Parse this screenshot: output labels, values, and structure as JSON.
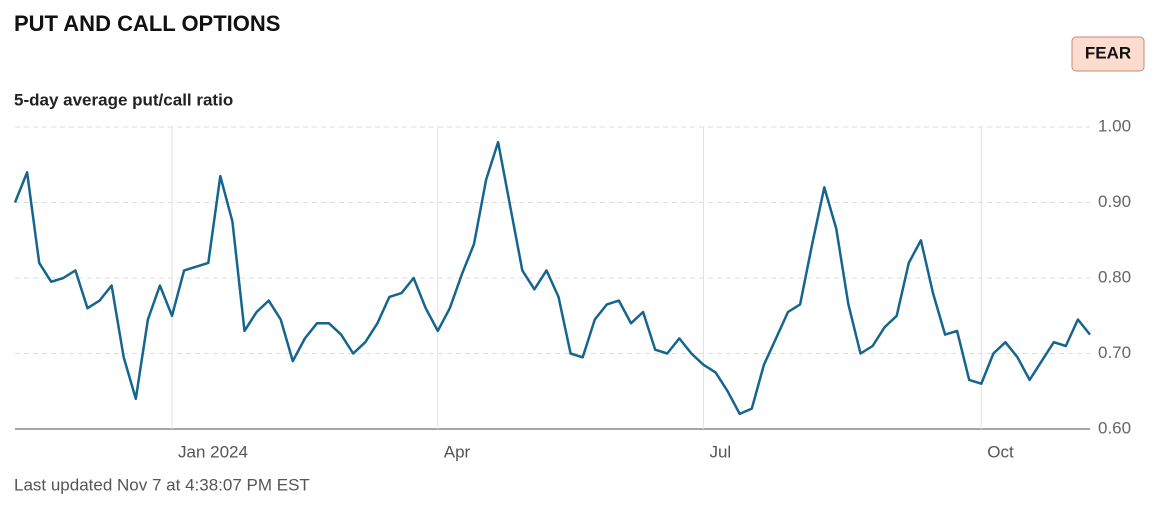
{
  "chart_data": {
    "type": "line",
    "title": "PUT AND CALL OPTIONS",
    "badge": "FEAR",
    "subtitle": "5-day average put/call ratio",
    "footnote": "Last updated Nov 7 at 4:38:07 PM EST",
    "categories": [
      null,
      null,
      null,
      null,
      null,
      null,
      null,
      null,
      null,
      null,
      null,
      null,
      null,
      "Jan 2024",
      null,
      null,
      null,
      null,
      null,
      null,
      null,
      null,
      null,
      null,
      null,
      null,
      null,
      null,
      null,
      null,
      null,
      null,
      null,
      null,
      null,
      "Apr",
      null,
      null,
      null,
      null,
      null,
      null,
      null,
      null,
      null,
      null,
      null,
      null,
      null,
      null,
      null,
      null,
      null,
      null,
      null,
      null,
      null,
      "Jul",
      null,
      null,
      null,
      null,
      null,
      null,
      null,
      null,
      null,
      null,
      null,
      null,
      null,
      null,
      null,
      null,
      null,
      null,
      null,
      null,
      null,
      null,
      "Oct",
      null,
      null,
      null,
      null,
      null,
      null,
      null,
      null,
      null
    ],
    "series": [
      {
        "color": "#16658f",
        "values": [
          0.9,
          0.94,
          0.82,
          0.795,
          0.8,
          0.81,
          0.76,
          0.77,
          0.79,
          0.695,
          0.64,
          0.745,
          0.79,
          0.75,
          0.81,
          0.815,
          0.82,
          0.935,
          0.875,
          0.73,
          0.755,
          0.77,
          0.745,
          0.69,
          0.72,
          0.74,
          0.74,
          0.725,
          0.7,
          0.715,
          0.74,
          0.775,
          0.78,
          0.8,
          0.76,
          0.73,
          0.76,
          0.805,
          0.845,
          0.93,
          0.98,
          0.895,
          0.81,
          0.785,
          0.81,
          0.775,
          0.7,
          0.695,
          0.745,
          0.765,
          0.77,
          0.74,
          0.755,
          0.705,
          0.7,
          0.72,
          0.7,
          0.685,
          0.675,
          0.65,
          0.62,
          0.627,
          0.685,
          0.72,
          0.755,
          0.765,
          0.845,
          0.92,
          0.865,
          0.765,
          0.7,
          0.71,
          0.735,
          0.75,
          0.82,
          0.85,
          0.78,
          0.725,
          0.73,
          0.665,
          0.66,
          0.7,
          0.715,
          0.695,
          0.665,
          0.69,
          0.715,
          0.71,
          0.745,
          0.725
        ]
      }
    ],
    "ylim": [
      0.6,
      1.0
    ],
    "yticks": [
      {
        "value": 0.6,
        "label": "0.60"
      },
      {
        "value": 0.7,
        "label": "0.70"
      },
      {
        "value": 0.8,
        "label": "0.80"
      },
      {
        "value": 0.9,
        "label": "0.90"
      },
      {
        "value": 1.0,
        "label": "1.00"
      }
    ],
    "grid": true
  }
}
